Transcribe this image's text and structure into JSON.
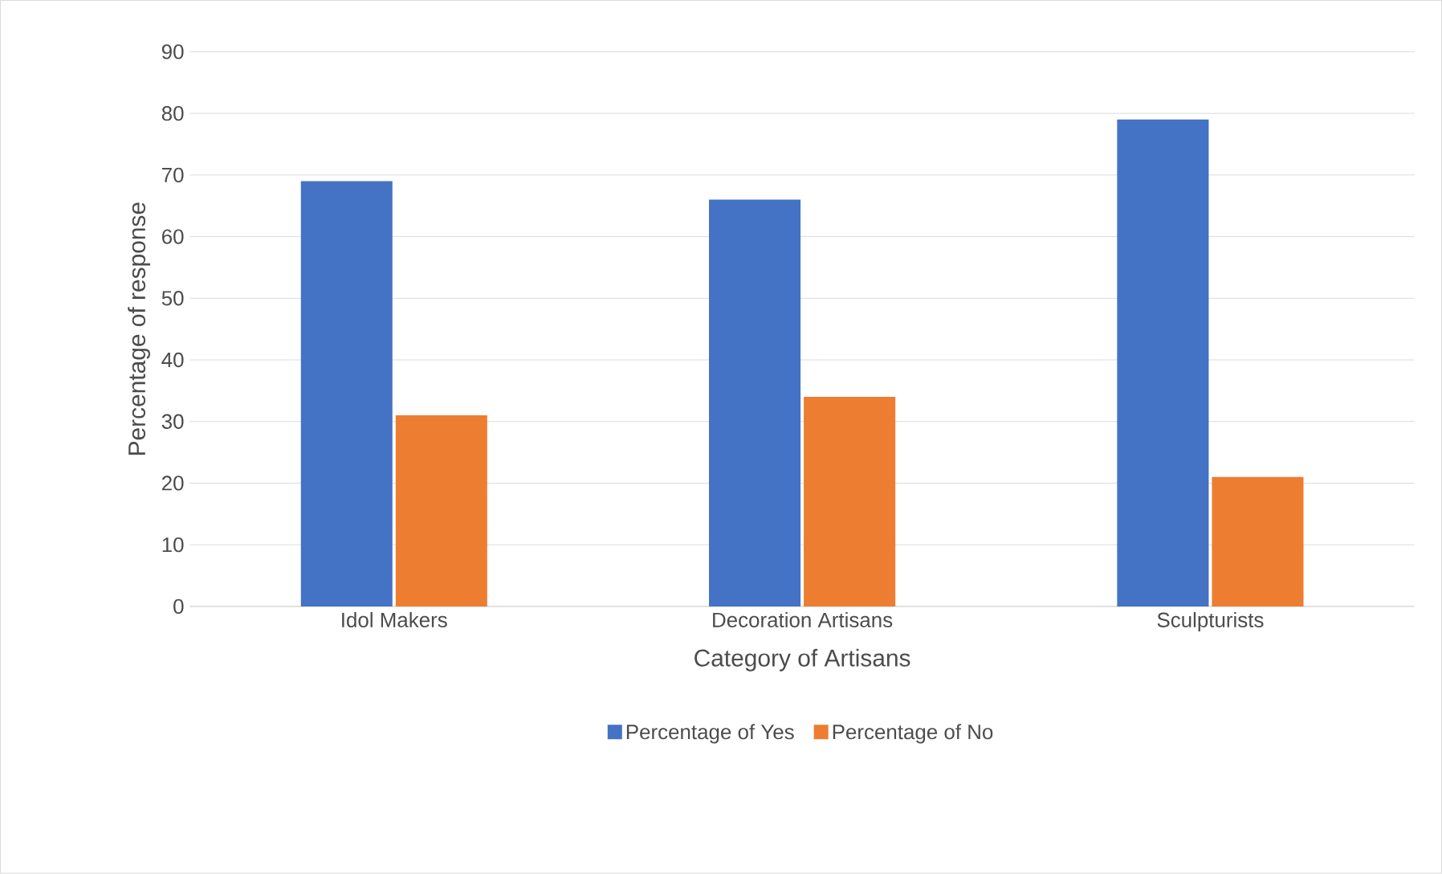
{
  "chart_data": {
    "type": "bar",
    "xlabel": "Category of Artisans",
    "ylabel": "Percentage of response",
    "categories": [
      "Idol Makers",
      "Decoration Artisans",
      "Sculpturists"
    ],
    "series": [
      {
        "name": "Percentage of Yes",
        "color": "#4472c4",
        "values": [
          69,
          66,
          79
        ]
      },
      {
        "name": "Percentage of No",
        "color": "#ed7d31",
        "values": [
          31,
          34,
          21
        ]
      }
    ],
    "ylim": [
      0,
      90
    ],
    "yticks": [
      0,
      10,
      20,
      30,
      40,
      50,
      60,
      70,
      80,
      90
    ],
    "grid": "y",
    "legend": "bottom"
  }
}
